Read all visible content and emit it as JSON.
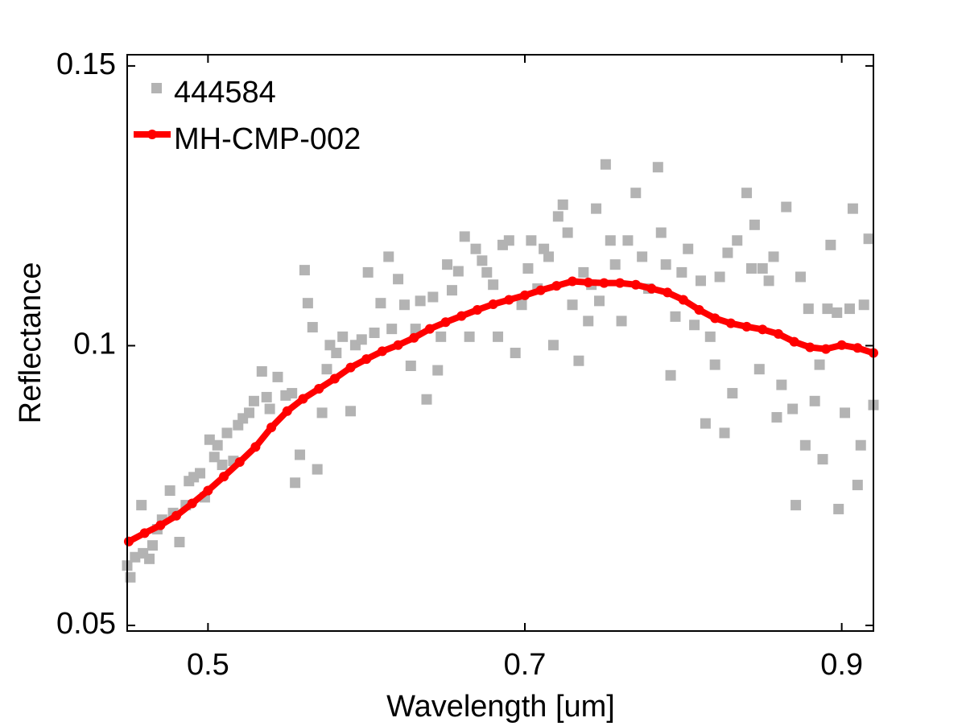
{
  "chart_data": {
    "type": "scatter",
    "xlabel": "Wavelength [um]",
    "ylabel": "Reflectance",
    "xlim": [
      0.449,
      0.92
    ],
    "ylim": [
      0.049,
      0.152
    ],
    "xticks": [
      0.5,
      0.7,
      0.9
    ],
    "yticks": [
      0.05,
      0.1,
      0.15
    ],
    "legend": "upper left",
    "series": [
      {
        "name": "444584",
        "type": "scatter",
        "color": "#b3b3b3",
        "x": [
          0.449,
          0.451,
          0.454,
          0.458,
          0.459,
          0.463,
          0.465,
          0.468,
          0.471,
          0.476,
          0.478,
          0.482,
          0.486,
          0.488,
          0.491,
          0.495,
          0.498,
          0.501,
          0.504,
          0.506,
          0.509,
          0.512,
          0.516,
          0.519,
          0.522,
          0.526,
          0.529,
          0.534,
          0.537,
          0.539,
          0.544,
          0.549,
          0.553,
          0.555,
          0.558,
          0.561,
          0.563,
          0.566,
          0.569,
          0.572,
          0.575,
          0.577,
          0.581,
          0.585,
          0.59,
          0.593,
          0.597,
          0.601,
          0.605,
          0.609,
          0.614,
          0.616,
          0.62,
          0.624,
          0.628,
          0.631,
          0.634,
          0.638,
          0.642,
          0.645,
          0.647,
          0.651,
          0.654,
          0.658,
          0.662,
          0.665,
          0.669,
          0.673,
          0.676,
          0.68,
          0.683,
          0.686,
          0.69,
          0.694,
          0.698,
          0.702,
          0.704,
          0.708,
          0.712,
          0.715,
          0.718,
          0.721,
          0.724,
          0.727,
          0.73,
          0.734,
          0.737,
          0.74,
          0.742,
          0.745,
          0.747,
          0.751,
          0.754,
          0.757,
          0.761,
          0.765,
          0.77,
          0.774,
          0.778,
          0.784,
          0.786,
          0.789,
          0.792,
          0.795,
          0.799,
          0.803,
          0.807,
          0.811,
          0.814,
          0.817,
          0.82,
          0.823,
          0.826,
          0.828,
          0.831,
          0.834,
          0.84,
          0.843,
          0.845,
          0.848,
          0.85,
          0.854,
          0.857,
          0.859,
          0.862,
          0.865,
          0.869,
          0.871,
          0.874,
          0.877,
          0.879,
          0.883,
          0.886,
          0.888,
          0.891,
          0.893,
          0.897,
          0.898,
          0.902,
          0.905,
          0.907,
          0.91,
          0.912,
          0.914,
          0.917,
          0.92
        ],
        "values": [
          0.0607,
          0.0586,
          0.0622,
          0.0715,
          0.0629,
          0.0619,
          0.0643,
          0.0672,
          0.0689,
          0.0741,
          0.0701,
          0.0649,
          0.0715,
          0.0758,
          0.0765,
          0.0772,
          0.0729,
          0.0832,
          0.0801,
          0.0822,
          0.0787,
          0.0844,
          0.0794,
          0.0858,
          0.087,
          0.088,
          0.0901,
          0.0954,
          0.0908,
          0.0887,
          0.0944,
          0.0911,
          0.0915,
          0.0755,
          0.0805,
          0.1135,
          0.1076,
          0.1033,
          0.0779,
          0.088,
          0.0958,
          0.1001,
          0.0987,
          0.1016,
          0.0883,
          0.1001,
          0.1011,
          0.1131,
          0.1023,
          0.1076,
          0.1159,
          0.103,
          0.1119,
          0.1073,
          0.0964,
          0.103,
          0.108,
          0.0904,
          0.1087,
          0.0956,
          0.1016,
          0.1145,
          0.1099,
          0.1133,
          0.1195,
          0.1016,
          0.1173,
          0.1152,
          0.1131,
          0.1109,
          0.1016,
          0.118,
          0.1188,
          0.0987,
          0.1073,
          0.1138,
          0.1188,
          0.1102,
          0.1173,
          0.1159,
          0.1001,
          0.1231,
          0.1252,
          0.1202,
          0.1073,
          0.0973,
          0.1131,
          0.1044,
          0.1109,
          0.1245,
          0.108,
          0.1324,
          0.1188,
          0.1145,
          0.1044,
          0.1188,
          0.1273,
          0.1159,
          0.1102,
          0.1319,
          0.1202,
          0.1145,
          0.0947,
          0.1052,
          0.1131,
          0.1173,
          0.1037,
          0.1116,
          0.0861,
          0.1016,
          0.0966,
          0.1123,
          0.0844,
          0.1166,
          0.0915,
          0.1188,
          0.1273,
          0.1138,
          0.1216,
          0.0958,
          0.1138,
          0.1116,
          0.1159,
          0.0872,
          0.093,
          0.1248,
          0.0887,
          0.0715,
          0.1123,
          0.0822,
          0.1066,
          0.0901,
          0.0966,
          0.0797,
          0.1066,
          0.118,
          0.1059,
          0.0708,
          0.088,
          0.1066,
          0.1245,
          0.0751,
          0.0822,
          0.1073,
          0.1191,
          0.0894
        ]
      },
      {
        "name": "MH-CMP-002",
        "type": "line",
        "color": "#ff0000",
        "x": [
          0.45,
          0.46,
          0.47,
          0.48,
          0.49,
          0.5,
          0.51,
          0.52,
          0.53,
          0.54,
          0.55,
          0.56,
          0.57,
          0.58,
          0.59,
          0.6,
          0.61,
          0.62,
          0.63,
          0.64,
          0.65,
          0.66,
          0.67,
          0.68,
          0.69,
          0.7,
          0.71,
          0.72,
          0.73,
          0.74,
          0.75,
          0.76,
          0.77,
          0.78,
          0.79,
          0.8,
          0.81,
          0.82,
          0.83,
          0.84,
          0.85,
          0.86,
          0.87,
          0.88,
          0.89,
          0.9,
          0.91,
          0.92
        ],
        "values": [
          0.065,
          0.0665,
          0.0679,
          0.0696,
          0.0718,
          0.0741,
          0.0766,
          0.0792,
          0.0819,
          0.0854,
          0.0883,
          0.0905,
          0.0923,
          0.0941,
          0.0961,
          0.0976,
          0.099,
          0.1001,
          0.1014,
          0.103,
          0.1042,
          0.1053,
          0.1064,
          0.1074,
          0.1082,
          0.109,
          0.1099,
          0.1107,
          0.1115,
          0.1113,
          0.1112,
          0.1112,
          0.1109,
          0.1102,
          0.1095,
          0.1082,
          0.1064,
          0.1049,
          0.104,
          0.1034,
          0.1029,
          0.1021,
          0.1007,
          0.0997,
          0.0994,
          0.1001,
          0.0996,
          0.0987
        ]
      }
    ]
  }
}
